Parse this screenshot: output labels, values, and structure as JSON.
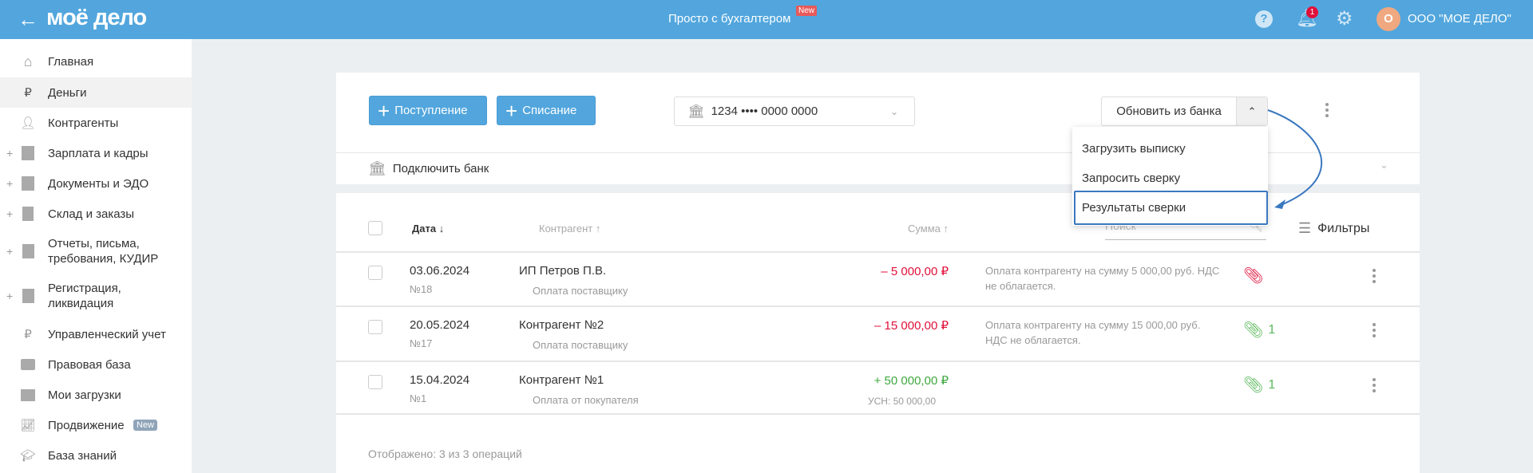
{
  "header": {
    "logo": "моё дело",
    "center_link": "Просто с бухгалтером",
    "new_badge": "New",
    "notifications_count": "1",
    "avatar_letter": "О",
    "company": "ООО \"МОЕ ДЕЛО\"",
    "accent": "#52a6dd"
  },
  "sidebar": {
    "items": [
      {
        "label": "Главная",
        "icon": "home-icon",
        "expandable": false
      },
      {
        "label": "Деньги",
        "icon": "money-icon",
        "expandable": false,
        "active": true
      },
      {
        "label": "Контрагенты",
        "icon": "person-icon",
        "expandable": false
      },
      {
        "label": "Зарплата и кадры",
        "icon": "badge-icon",
        "expandable": true
      },
      {
        "label": "Документы и ЭДО",
        "icon": "folder-icon",
        "expandable": true
      },
      {
        "label": "Склад и заказы",
        "icon": "warehouse-icon",
        "expandable": true
      },
      {
        "label": "Отчеты, письма, требования, КУДИР",
        "icon": "report-icon",
        "expandable": true
      },
      {
        "label": "Регистрация, ликвидация",
        "icon": "registration-icon",
        "expandable": true
      },
      {
        "label": "Управленческий учет",
        "icon": "ruble-doc-icon",
        "expandable": false
      },
      {
        "label": "Правовая база",
        "icon": "briefcase-icon",
        "expandable": false
      },
      {
        "label": "Мои загрузки",
        "icon": "folder-icon",
        "expandable": false
      },
      {
        "label": "Продвижение",
        "icon": "chart-icon",
        "expandable": false,
        "badge": "New"
      },
      {
        "label": "База знаний",
        "icon": "graduation-icon",
        "expandable": false
      }
    ]
  },
  "toolbar": {
    "income_label": "Поступление",
    "expense_label": "Списание",
    "account_value": "1234 •••• 0000 0000",
    "update_label": "Обновить из банка",
    "connect_bank": "Подключить банк"
  },
  "dropdown": {
    "items": [
      "Загрузить выписку",
      "Запросить сверку",
      "Результаты сверки"
    ],
    "highlighted": 2
  },
  "table": {
    "headers": {
      "date": "Дата ↓",
      "contractor": "Контрагент ↑",
      "sum": "Сумма ↑",
      "search_placeholder": "Поиск",
      "filters": "Фильтры"
    },
    "rows": [
      {
        "date": "03.06.2024",
        "number": "№18",
        "contractor": "ИП Петров П.В.",
        "type": "Оплата поставщику",
        "sum": "– 5 000,00 ₽",
        "sum_color": "#e0103a",
        "tax": "",
        "description_1": "Оплата контрагенту на сумму 5 000,00 руб. НДС",
        "description_2": "не облагается.",
        "clip_color": "#e0103a",
        "clip_count": ""
      },
      {
        "date": "20.05.2024",
        "number": "№17",
        "contractor": "Контрагент №2",
        "type": "Оплата поставщику",
        "sum": "– 15 000,00 ₽",
        "sum_color": "#e0103a",
        "tax": "",
        "description_1": "Оплата контрагенту на сумму 15 000,00 руб.",
        "description_2": "НДС не облагается.",
        "clip_color": "#5cb85c",
        "clip_count": "1"
      },
      {
        "date": "15.04.2024",
        "number": "№1",
        "contractor": "Контрагент №1",
        "type": "Оплата от покупателя",
        "sum": "+ 50 000,00 ₽",
        "sum_color": "#3fa83f",
        "tax": "УСН: 50 000,00",
        "description_1": "",
        "description_2": "",
        "clip_color": "#5cb85c",
        "clip_count": "1"
      }
    ],
    "footer": "Отображено: 3 из 3 операций"
  }
}
